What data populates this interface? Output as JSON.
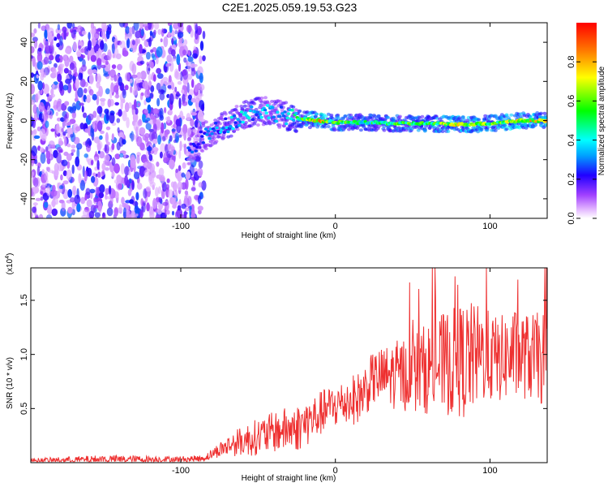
{
  "title": "C2E1.2025.059.19.53.G23",
  "colors": {
    "snr_line": "#ee3030",
    "colormap": [
      "#ffffff",
      "#c070ff",
      "#6000e0",
      "#0000ff",
      "#00e0ff",
      "#00ff00",
      "#ffff00",
      "#ff8000",
      "#ff0000"
    ]
  },
  "chart_data": [
    {
      "type": "heatmap",
      "title": "C2E1.2025.059.19.53.G23",
      "xlabel": "Height of straight line (km)",
      "ylabel": "Frequency (Hz)",
      "xlim": [
        -197,
        137
      ],
      "ylim": [
        -50,
        50
      ],
      "x_ticks": [
        -100,
        0,
        100
      ],
      "y_ticks": [
        -40,
        -20,
        0,
        20,
        40
      ],
      "x_tick_labels": [
        "-100",
        "0",
        "100"
      ],
      "y_tick_labels": [
        "-40",
        "-20",
        "0",
        "20",
        "40"
      ],
      "colorbar": {
        "label": "Normalized spectral amplitude",
        "range": [
          0,
          1
        ],
        "ticks": [
          0.0,
          0.2,
          0.4,
          0.6,
          0.8
        ],
        "tick_labels": [
          "0.0",
          "0.2",
          "0.4",
          "0.6",
          "0.8"
        ]
      },
      "regions": [
        {
          "x_range": [
            -197,
            -85
          ],
          "description_values": {
            "freq_range": [
              -50,
              50
            ],
            "amplitude": [
              0.05,
              0.3
            ]
          }
        },
        {
          "x_range": [
            -92,
            -25
          ],
          "description_values": {
            "freq_center_start": -10,
            "freq_center_end": 3,
            "amplitude": [
              0.2,
              0.45
            ]
          }
        },
        {
          "x_range": [
            -25,
            137
          ],
          "description_values": {
            "freq_center": -1,
            "amplitude": [
              0.3,
              0.85
            ]
          }
        }
      ],
      "ridge": {
        "x": [
          -95,
          -85,
          -75,
          -65,
          -55,
          -45,
          -35,
          -25,
          -10,
          0,
          20,
          40,
          60,
          80,
          100,
          120,
          137
        ],
        "y": [
          -16,
          -8,
          -4,
          0,
          4,
          5,
          3,
          1,
          0,
          -1,
          -1,
          -1.5,
          -1.5,
          -2,
          -1.5,
          0,
          0
        ],
        "amplitude": [
          0.25,
          0.3,
          0.35,
          0.4,
          0.4,
          0.38,
          0.35,
          0.5,
          0.85,
          0.6,
          0.55,
          0.6,
          0.6,
          0.75,
          0.65,
          0.8,
          0.8
        ]
      }
    },
    {
      "type": "line",
      "xlabel": "Height of straight line (km)",
      "ylabel": "SNR (10 * v/v)",
      "y_multiplier_label": "(x10^4)",
      "xlim": [
        -197,
        137
      ],
      "ylim": [
        0,
        1.8
      ],
      "x_ticks": [
        -100,
        0,
        100
      ],
      "y_ticks": [
        0.5,
        1.0,
        1.5
      ],
      "x_tick_labels": [
        "-100",
        "0",
        "100"
      ],
      "y_tick_labels": [
        "0.5",
        "1.0",
        "1.5"
      ],
      "envelope": {
        "x": [
          -197,
          -150,
          -100,
          -85,
          -75,
          -65,
          -55,
          -45,
          -35,
          -25,
          -15,
          -5,
          5,
          15,
          25,
          35,
          45,
          55,
          65,
          75,
          85,
          95,
          105,
          115,
          125,
          137
        ],
        "mean": [
          0.02,
          0.03,
          0.03,
          0.04,
          0.12,
          0.18,
          0.22,
          0.26,
          0.3,
          0.32,
          0.4,
          0.5,
          0.55,
          0.6,
          0.78,
          0.8,
          0.82,
          0.85,
          0.9,
          0.92,
          0.95,
          1.0,
          0.95,
          1.0,
          0.98,
          0.95
        ],
        "spread": [
          0.02,
          0.04,
          0.03,
          0.03,
          0.07,
          0.12,
          0.16,
          0.18,
          0.2,
          0.22,
          0.22,
          0.2,
          0.22,
          0.24,
          0.25,
          0.3,
          0.35,
          0.4,
          0.45,
          0.5,
          0.55,
          0.45,
          0.4,
          0.42,
          0.4,
          0.45
        ],
        "peak_max": 1.8
      }
    }
  ]
}
